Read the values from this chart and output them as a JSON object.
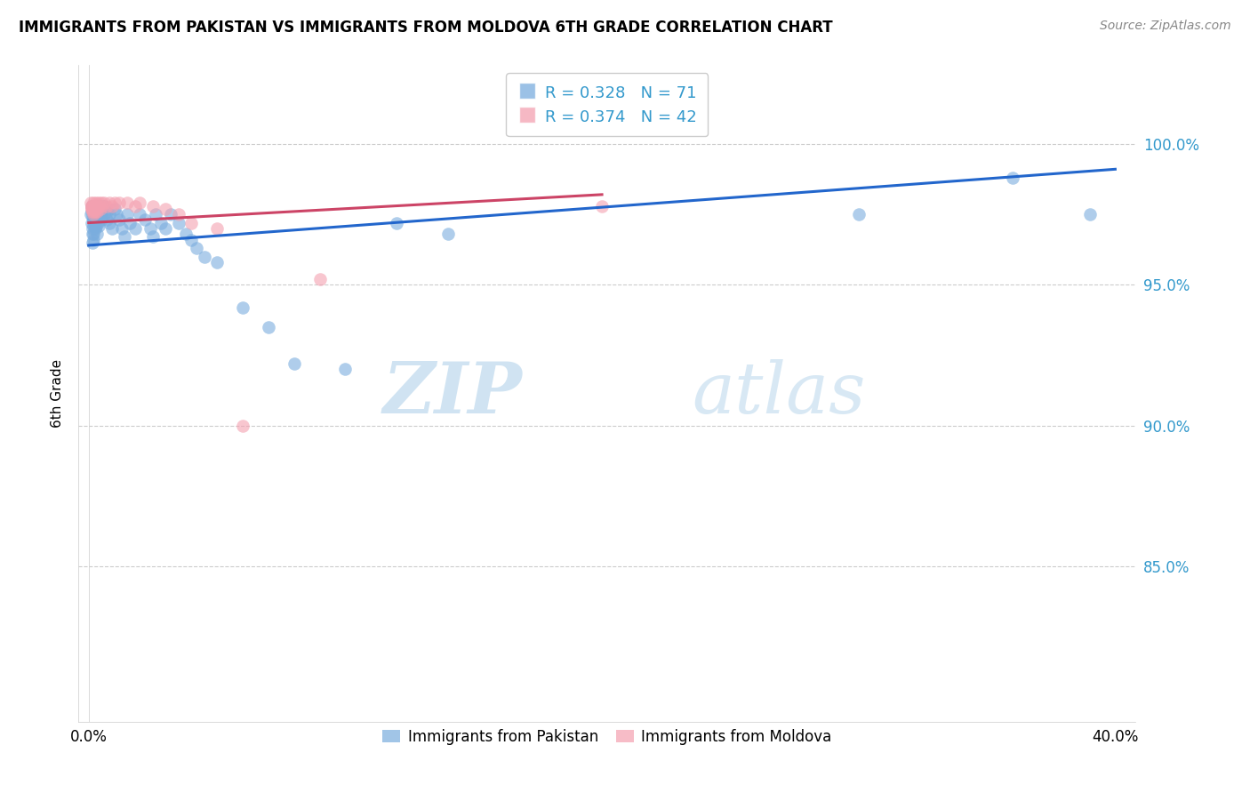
{
  "title": "IMMIGRANTS FROM PAKISTAN VS IMMIGRANTS FROM MOLDOVA 6TH GRADE CORRELATION CHART",
  "source": "Source: ZipAtlas.com",
  "ylabel": "6th Grade",
  "pakistan_R": 0.328,
  "pakistan_N": 71,
  "moldova_R": 0.374,
  "moldova_N": 42,
  "pakistan_color": "#7aadde",
  "moldova_color": "#f4a0b0",
  "pakistan_line_color": "#2266cc",
  "moldova_line_color": "#cc4466",
  "legend_pakistan": "Immigrants from Pakistan",
  "legend_moldova": "Immigrants from Moldova",
  "watermark_zip": "ZIP",
  "watermark_atlas": "atlas",
  "ytick_values": [
    1.0,
    0.95,
    0.9,
    0.85
  ],
  "ytick_labels": [
    "100.0%",
    "95.0%",
    "90.0%",
    "85.0%"
  ],
  "ymin": 0.795,
  "ymax": 1.028,
  "xmin": -0.004,
  "xmax": 0.408,
  "pakistan_x": [
    0.0008,
    0.001,
    0.001,
    0.0012,
    0.0014,
    0.0015,
    0.0015,
    0.0016,
    0.0017,
    0.0018,
    0.002,
    0.002,
    0.002,
    0.002,
    0.002,
    0.0022,
    0.0023,
    0.0025,
    0.0025,
    0.003,
    0.003,
    0.003,
    0.003,
    0.0032,
    0.0035,
    0.004,
    0.004,
    0.004,
    0.004,
    0.0045,
    0.005,
    0.005,
    0.005,
    0.006,
    0.006,
    0.007,
    0.007,
    0.008,
    0.008,
    0.009,
    0.01,
    0.011,
    0.012,
    0.013,
    0.014,
    0.015,
    0.016,
    0.018,
    0.02,
    0.022,
    0.024,
    0.025,
    0.026,
    0.028,
    0.03,
    0.032,
    0.035,
    0.038,
    0.04,
    0.042,
    0.045,
    0.05,
    0.06,
    0.07,
    0.08,
    0.1,
    0.12,
    0.14,
    0.3,
    0.36,
    0.39
  ],
  "pakistan_y": [
    0.975,
    0.978,
    0.972,
    0.976,
    0.974,
    0.97,
    0.965,
    0.968,
    0.973,
    0.966,
    0.978,
    0.975,
    0.973,
    0.971,
    0.968,
    0.977,
    0.972,
    0.975,
    0.97,
    0.978,
    0.976,
    0.974,
    0.971,
    0.968,
    0.972,
    0.978,
    0.976,
    0.974,
    0.971,
    0.975,
    0.978,
    0.976,
    0.973,
    0.978,
    0.975,
    0.976,
    0.973,
    0.975,
    0.972,
    0.97,
    0.977,
    0.975,
    0.973,
    0.97,
    0.967,
    0.975,
    0.972,
    0.97,
    0.975,
    0.973,
    0.97,
    0.967,
    0.975,
    0.972,
    0.97,
    0.975,
    0.972,
    0.968,
    0.966,
    0.963,
    0.96,
    0.958,
    0.942,
    0.935,
    0.922,
    0.92,
    0.972,
    0.968,
    0.975,
    0.988,
    0.975
  ],
  "moldova_x": [
    0.0008,
    0.001,
    0.001,
    0.0012,
    0.0013,
    0.0014,
    0.0015,
    0.0016,
    0.0017,
    0.0018,
    0.002,
    0.002,
    0.002,
    0.0022,
    0.0024,
    0.0025,
    0.003,
    0.003,
    0.003,
    0.0032,
    0.004,
    0.004,
    0.0045,
    0.005,
    0.005,
    0.006,
    0.007,
    0.008,
    0.009,
    0.01,
    0.012,
    0.015,
    0.018,
    0.02,
    0.025,
    0.03,
    0.035,
    0.04,
    0.05,
    0.06,
    0.09,
    0.2
  ],
  "moldova_y": [
    0.979,
    0.978,
    0.977,
    0.978,
    0.977,
    0.976,
    0.978,
    0.977,
    0.976,
    0.975,
    0.979,
    0.978,
    0.977,
    0.978,
    0.977,
    0.976,
    0.979,
    0.978,
    0.977,
    0.976,
    0.979,
    0.978,
    0.977,
    0.979,
    0.978,
    0.979,
    0.978,
    0.979,
    0.978,
    0.979,
    0.979,
    0.979,
    0.978,
    0.979,
    0.978,
    0.977,
    0.975,
    0.972,
    0.97,
    0.9,
    0.952,
    0.978
  ]
}
